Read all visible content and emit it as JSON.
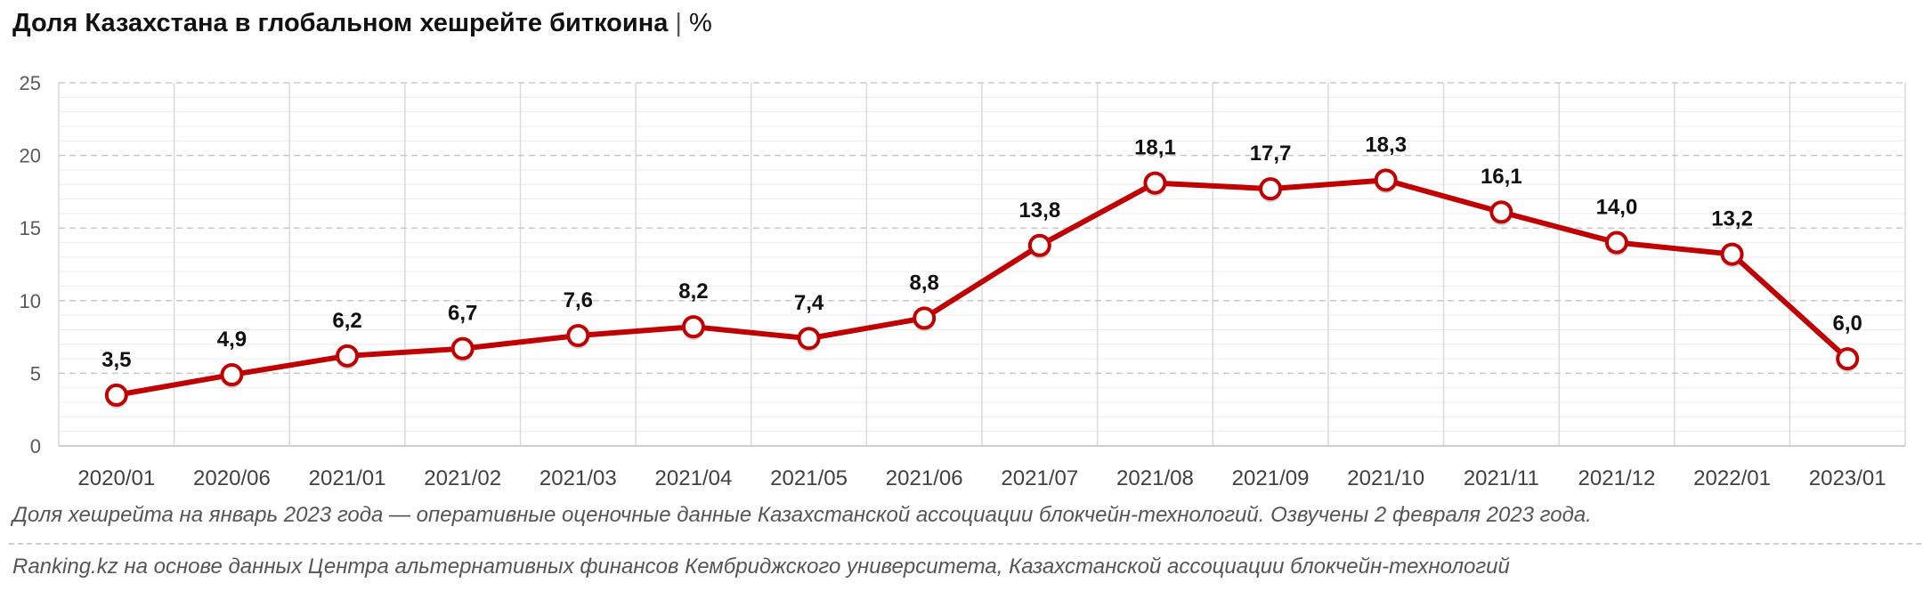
{
  "title": {
    "text": "Доля Казахстана в глобальном хешрейте биткоина",
    "separator": "|",
    "unit": "%"
  },
  "chart_data": {
    "type": "line",
    "title": "Доля Казахстана в глобальном хешрейте биткоина",
    "unit": "%",
    "categories": [
      "2020/01",
      "2020/06",
      "2021/01",
      "2021/02",
      "2021/03",
      "2021/04",
      "2021/05",
      "2021/06",
      "2021/07",
      "2021/08",
      "2021/09",
      "2021/10",
      "2021/11",
      "2021/12",
      "2022/01",
      "2023/01"
    ],
    "values": [
      3.5,
      4.9,
      6.2,
      6.7,
      7.6,
      8.2,
      7.4,
      8.8,
      13.8,
      18.1,
      17.7,
      18.3,
      16.1,
      14.0,
      13.2,
      6.0
    ],
    "data_labels": [
      "3,5",
      "4,9",
      "6,2",
      "6,7",
      "7,6",
      "8,2",
      "7,4",
      "8,8",
      "13,8",
      "18,1",
      "17,7",
      "18,3",
      "16,1",
      "14,0",
      "13,2",
      "6,0"
    ],
    "ylim": [
      0,
      25
    ],
    "yticks": [
      0,
      5,
      10,
      15,
      20,
      25
    ],
    "grid": true,
    "xlabel": "",
    "ylabel": "",
    "line_color": "#c00000"
  },
  "notes": {
    "note1": "Доля хешрейта на январь 2023 года — оперативные оценочные данные Казахстанской ассоциации блокчейн-технологий. Озвучены 2 февраля 2023 года.",
    "source": "Ranking.kz на основе данных Центра альтернативных финансов Кембриджского университета, Казахстанской ассоциации блокчейн-технологий"
  }
}
